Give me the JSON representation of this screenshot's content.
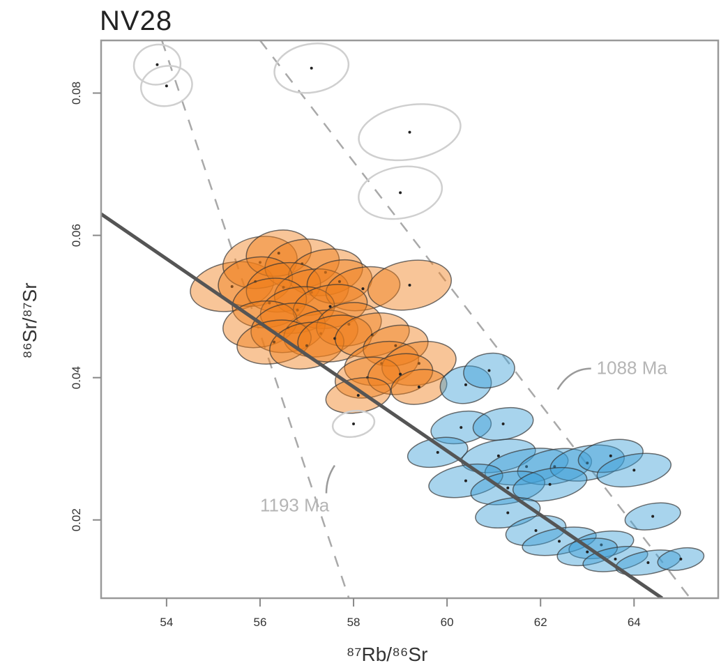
{
  "chart_data": {
    "type": "scatter",
    "title": "NV28",
    "xlabel": "⁸⁷Rb/⁸⁶Sr",
    "ylabel": "⁸⁶Sr/⁸⁷Sr",
    "xlim": [
      52.6,
      65.8
    ],
    "ylim": [
      0.009,
      0.0874
    ],
    "x_ticks": [
      54,
      56,
      58,
      60,
      62,
      64
    ],
    "x_tick_labels": [
      "54",
      "56",
      "58",
      "60",
      "62",
      "64"
    ],
    "y_ticks": [
      0.02,
      0.04,
      0.06,
      0.08
    ],
    "y_tick_labels": [
      "0.02",
      "0.04",
      "0.06",
      "0.08"
    ],
    "grid": false,
    "isochron": {
      "x1": 52.6,
      "y1": 0.063,
      "x2": 64.6,
      "y2": 0.009,
      "color": "#555555"
    },
    "reference_lines": [
      {
        "label": "1193 Ma",
        "x1": 53.9,
        "y1": 0.0874,
        "x2": 57.9,
        "y2": 0.009
      },
      {
        "label": "1088 Ma",
        "x1": 56.0,
        "y1": 0.0874,
        "x2": 65.2,
        "y2": 0.009
      }
    ],
    "series": [
      {
        "color": "#ef7f1a",
        "points": [
          {
            "x": 55.4,
            "y": 0.0528,
            "rx": 0.9,
            "ry": 0.0034
          },
          {
            "x": 56.0,
            "y": 0.0562,
            "rx": 0.8,
            "ry": 0.0036
          },
          {
            "x": 56.4,
            "y": 0.0575,
            "rx": 0.7,
            "ry": 0.0032
          },
          {
            "x": 56.9,
            "y": 0.056,
            "rx": 0.8,
            "ry": 0.0034
          },
          {
            "x": 57.4,
            "y": 0.0548,
            "rx": 0.8,
            "ry": 0.0032
          },
          {
            "x": 55.9,
            "y": 0.0535,
            "rx": 0.8,
            "ry": 0.0034
          },
          {
            "x": 56.5,
            "y": 0.0527,
            "rx": 0.8,
            "ry": 0.0034
          },
          {
            "x": 57.1,
            "y": 0.052,
            "rx": 0.8,
            "ry": 0.0032
          },
          {
            "x": 57.7,
            "y": 0.0535,
            "rx": 0.7,
            "ry": 0.003
          },
          {
            "x": 58.2,
            "y": 0.0525,
            "rx": 0.8,
            "ry": 0.003
          },
          {
            "x": 59.2,
            "y": 0.053,
            "rx": 0.9,
            "ry": 0.0034
          },
          {
            "x": 56.2,
            "y": 0.0505,
            "rx": 0.8,
            "ry": 0.0034
          },
          {
            "x": 56.8,
            "y": 0.0495,
            "rx": 0.8,
            "ry": 0.0032
          },
          {
            "x": 57.5,
            "y": 0.05,
            "rx": 0.8,
            "ry": 0.003
          },
          {
            "x": 56.0,
            "y": 0.0475,
            "rx": 0.8,
            "ry": 0.0032
          },
          {
            "x": 56.6,
            "y": 0.047,
            "rx": 0.8,
            "ry": 0.0034
          },
          {
            "x": 57.3,
            "y": 0.0462,
            "rx": 0.8,
            "ry": 0.0032
          },
          {
            "x": 57.9,
            "y": 0.0475,
            "rx": 0.7,
            "ry": 0.003
          },
          {
            "x": 56.3,
            "y": 0.045,
            "rx": 0.8,
            "ry": 0.003
          },
          {
            "x": 57.0,
            "y": 0.0445,
            "rx": 0.8,
            "ry": 0.0032
          },
          {
            "x": 57.6,
            "y": 0.0455,
            "rx": 0.8,
            "ry": 0.0032
          },
          {
            "x": 58.4,
            "y": 0.046,
            "rx": 0.8,
            "ry": 0.003
          },
          {
            "x": 58.9,
            "y": 0.0445,
            "rx": 0.7,
            "ry": 0.0028
          },
          {
            "x": 58.6,
            "y": 0.042,
            "rx": 0.8,
            "ry": 0.003
          },
          {
            "x": 59.4,
            "y": 0.042,
            "rx": 0.8,
            "ry": 0.003
          },
          {
            "x": 58.3,
            "y": 0.04,
            "rx": 0.7,
            "ry": 0.0028
          },
          {
            "x": 59.0,
            "y": 0.0405,
            "rx": 0.7,
            "ry": 0.0028
          },
          {
            "x": 59.4,
            "y": 0.0387,
            "rx": 0.6,
            "ry": 0.0024
          },
          {
            "x": 58.1,
            "y": 0.0375,
            "rx": 0.7,
            "ry": 0.0024
          }
        ]
      },
      {
        "color": "#3d9fd6",
        "points": [
          {
            "x": 60.4,
            "y": 0.039,
            "rx": 0.55,
            "ry": 0.0026
          },
          {
            "x": 60.9,
            "y": 0.041,
            "rx": 0.55,
            "ry": 0.0024
          },
          {
            "x": 60.3,
            "y": 0.033,
            "rx": 0.65,
            "ry": 0.0022
          },
          {
            "x": 61.2,
            "y": 0.0335,
            "rx": 0.65,
            "ry": 0.0022
          },
          {
            "x": 59.8,
            "y": 0.0295,
            "rx": 0.65,
            "ry": 0.002
          },
          {
            "x": 61.1,
            "y": 0.029,
            "rx": 0.8,
            "ry": 0.0022
          },
          {
            "x": 61.7,
            "y": 0.0275,
            "rx": 0.9,
            "ry": 0.0024
          },
          {
            "x": 62.3,
            "y": 0.0275,
            "rx": 0.8,
            "ry": 0.0024
          },
          {
            "x": 63.0,
            "y": 0.028,
            "rx": 0.8,
            "ry": 0.0024
          },
          {
            "x": 63.5,
            "y": 0.029,
            "rx": 0.7,
            "ry": 0.0022
          },
          {
            "x": 64.0,
            "y": 0.027,
            "rx": 0.8,
            "ry": 0.0022
          },
          {
            "x": 60.4,
            "y": 0.0255,
            "rx": 0.8,
            "ry": 0.0022
          },
          {
            "x": 61.3,
            "y": 0.0245,
            "rx": 0.8,
            "ry": 0.0022
          },
          {
            "x": 62.2,
            "y": 0.025,
            "rx": 0.8,
            "ry": 0.0022
          },
          {
            "x": 61.3,
            "y": 0.021,
            "rx": 0.7,
            "ry": 0.002
          },
          {
            "x": 61.9,
            "y": 0.0185,
            "rx": 0.65,
            "ry": 0.002
          },
          {
            "x": 64.4,
            "y": 0.0205,
            "rx": 0.6,
            "ry": 0.0018
          },
          {
            "x": 62.4,
            "y": 0.017,
            "rx": 0.8,
            "ry": 0.0018
          },
          {
            "x": 63.3,
            "y": 0.0165,
            "rx": 0.7,
            "ry": 0.0018
          },
          {
            "x": 63.0,
            "y": 0.0155,
            "rx": 0.65,
            "ry": 0.0018
          },
          {
            "x": 63.6,
            "y": 0.0145,
            "rx": 0.7,
            "ry": 0.0016
          },
          {
            "x": 64.3,
            "y": 0.014,
            "rx": 0.7,
            "ry": 0.0016
          },
          {
            "x": 65.0,
            "y": 0.0145,
            "rx": 0.5,
            "ry": 0.0015
          }
        ]
      },
      {
        "color": "#c8c8c8",
        "points": [
          {
            "x": 53.8,
            "y": 0.084,
            "rx": 0.5,
            "ry": 0.0028
          },
          {
            "x": 54.0,
            "y": 0.081,
            "rx": 0.55,
            "ry": 0.0028
          },
          {
            "x": 57.1,
            "y": 0.0835,
            "rx": 0.8,
            "ry": 0.0034
          },
          {
            "x": 59.2,
            "y": 0.0745,
            "rx": 1.1,
            "ry": 0.0038
          },
          {
            "x": 59.0,
            "y": 0.066,
            "rx": 0.9,
            "ry": 0.0036
          },
          {
            "x": 58.0,
            "y": 0.0335,
            "rx": 0.45,
            "ry": 0.0018
          }
        ]
      }
    ],
    "annotations": [
      {
        "text": "1193 Ma",
        "x": 56.0,
        "y": 0.0212
      },
      {
        "text": "1088 Ma",
        "x": 63.2,
        "y": 0.0405
      }
    ]
  }
}
